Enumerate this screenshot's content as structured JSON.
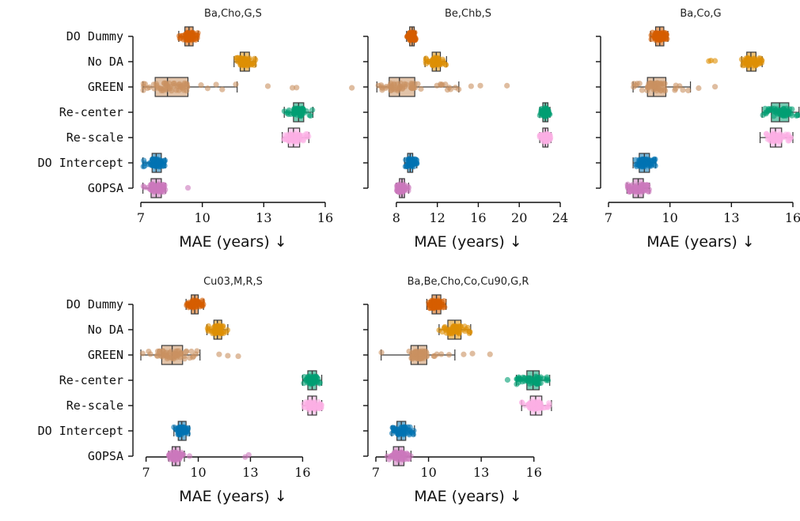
{
  "chart_data": [
    {
      "type": "box",
      "title": "Ba,Cho,G,S",
      "xlabel": "MAE (years) ↓",
      "xlim": [
        7,
        16
      ],
      "xticks": [
        7,
        10,
        13,
        16
      ],
      "ytick_labels_shown": true,
      "methods": [
        {
          "name": "DO Dummy",
          "color": "#d55e00",
          "q1": 9.15,
          "median": 9.35,
          "q3": 9.55,
          "whislo": 8.85,
          "whishi": 9.8,
          "outliers": []
        },
        {
          "name": "No DA",
          "color": "#de8f05",
          "q1": 11.85,
          "median": 12.05,
          "q3": 12.3,
          "whislo": 11.55,
          "whishi": 12.6,
          "outliers": []
        },
        {
          "name": "GREEN",
          "color": "#ca9161",
          "q1": 7.7,
          "median": 8.3,
          "q3": 9.3,
          "whislo": 7.1,
          "whishi": 11.7,
          "outliers": [
            13.2,
            14.4,
            14.6,
            17.3
          ]
        },
        {
          "name": "Re-center",
          "color": "#029e73",
          "q1": 14.45,
          "median": 14.7,
          "q3": 14.95,
          "whislo": 14.0,
          "whishi": 15.4,
          "outliers": []
        },
        {
          "name": "Re-scale",
          "color": "#fbafe4",
          "q1": 14.2,
          "median": 14.45,
          "q3": 14.75,
          "whislo": 13.9,
          "whishi": 15.2,
          "outliers": []
        },
        {
          "name": "DO Intercept",
          "color": "#0173b2",
          "q1": 7.55,
          "median": 7.75,
          "q3": 8.0,
          "whislo": 7.1,
          "whishi": 8.2,
          "outliers": []
        },
        {
          "name": "GOPSA",
          "color": "#cc78bc",
          "q1": 7.5,
          "median": 7.75,
          "q3": 8.0,
          "whislo": 7.1,
          "whishi": 8.2,
          "outliers": [
            9.3
          ]
        }
      ]
    },
    {
      "type": "box",
      "title": "Be,Chb,S",
      "xlabel": "MAE (years) ↓",
      "xlim": [
        6,
        24
      ],
      "xticks": [
        8,
        12,
        16,
        20,
        24
      ],
      "ytick_labels_shown": false,
      "methods": [
        {
          "name": "DO Dummy",
          "color": "#d55e00",
          "q1": 9.3,
          "median": 9.55,
          "q3": 9.75,
          "whislo": 9.0,
          "whishi": 9.9,
          "outliers": []
        },
        {
          "name": "No DA",
          "color": "#de8f05",
          "q1": 11.5,
          "median": 11.9,
          "q3": 12.3,
          "whislo": 10.8,
          "whishi": 12.9,
          "outliers": []
        },
        {
          "name": "GREEN",
          "color": "#ca9161",
          "q1": 7.3,
          "median": 8.3,
          "q3": 9.8,
          "whislo": 6.1,
          "whishi": 14.1,
          "outliers": [
            15.3,
            16.2,
            18.8
          ]
        },
        {
          "name": "Re-center",
          "color": "#029e73",
          "q1": 22.3,
          "median": 22.55,
          "q3": 22.8,
          "whislo": 22.0,
          "whishi": 23.0,
          "outliers": []
        },
        {
          "name": "Re-scale",
          "color": "#fbafe4",
          "q1": 22.3,
          "median": 22.55,
          "q3": 22.8,
          "whislo": 22.0,
          "whishi": 23.1,
          "outliers": []
        },
        {
          "name": "DO Intercept",
          "color": "#0173b2",
          "q1": 9.1,
          "median": 9.35,
          "q3": 9.6,
          "whislo": 8.8,
          "whishi": 10.0,
          "outliers": []
        },
        {
          "name": "GOPSA",
          "color": "#cc78bc",
          "q1": 8.3,
          "median": 8.55,
          "q3": 8.8,
          "whislo": 8.0,
          "whishi": 9.2,
          "outliers": []
        }
      ]
    },
    {
      "type": "box",
      "title": "Ba,Co,G",
      "xlabel": "MAE (years) ↓",
      "xlim": [
        7,
        16
      ],
      "xticks": [
        7,
        10,
        13,
        16
      ],
      "ytick_labels_shown": false,
      "methods": [
        {
          "name": "DO Dummy",
          "color": "#d55e00",
          "q1": 9.3,
          "median": 9.5,
          "q3": 9.7,
          "whislo": 9.05,
          "whishi": 9.9,
          "outliers": []
        },
        {
          "name": "No DA",
          "color": "#de8f05",
          "q1": 13.75,
          "median": 13.95,
          "q3": 14.2,
          "whislo": 13.5,
          "whishi": 14.5,
          "outliers": [
            11.9,
            12.0,
            12.2
          ]
        },
        {
          "name": "GREEN",
          "color": "#ca9161",
          "q1": 8.9,
          "median": 9.2,
          "q3": 9.8,
          "whislo": 8.2,
          "whishi": 11.0,
          "outliers": [
            11.4,
            12.2
          ]
        },
        {
          "name": "Re-center",
          "color": "#029e73",
          "q1": 14.95,
          "median": 15.35,
          "q3": 15.8,
          "whislo": 14.5,
          "whishi": 16.3,
          "outliers": []
        },
        {
          "name": "Re-scale",
          "color": "#fbafe4",
          "q1": 14.9,
          "median": 15.15,
          "q3": 15.45,
          "whislo": 14.4,
          "whishi": 16.0,
          "outliers": []
        },
        {
          "name": "DO Intercept",
          "color": "#0173b2",
          "q1": 8.5,
          "median": 8.75,
          "q3": 9.0,
          "whislo": 8.2,
          "whishi": 9.3,
          "outliers": []
        },
        {
          "name": "GOPSA",
          "color": "#cc78bc",
          "q1": 8.2,
          "median": 8.45,
          "q3": 8.7,
          "whislo": 7.9,
          "whishi": 9.0,
          "outliers": []
        }
      ]
    },
    {
      "type": "box",
      "title": "Cu03,M,R,S",
      "xlabel": "MAE (years) ↓",
      "xlim": [
        6.7,
        17.3
      ],
      "xticks": [
        7,
        10,
        13,
        16
      ],
      "ytick_labels_shown": true,
      "methods": [
        {
          "name": "DO Dummy",
          "color": "#d55e00",
          "q1": 9.6,
          "median": 9.8,
          "q3": 10.0,
          "whislo": 9.3,
          "whishi": 10.3,
          "outliers": []
        },
        {
          "name": "No DA",
          "color": "#de8f05",
          "q1": 10.9,
          "median": 11.1,
          "q3": 11.35,
          "whislo": 10.5,
          "whishi": 11.7,
          "outliers": []
        },
        {
          "name": "GREEN",
          "color": "#ca9161",
          "q1": 7.9,
          "median": 8.5,
          "q3": 9.1,
          "whislo": 6.7,
          "whishi": 10.1,
          "outliers": [
            11.2,
            11.7,
            12.3
          ]
        },
        {
          "name": "Re-center",
          "color": "#029e73",
          "q1": 16.3,
          "median": 16.55,
          "q3": 16.8,
          "whislo": 16.0,
          "whishi": 17.1,
          "outliers": []
        },
        {
          "name": "Re-scale",
          "color": "#fbafe4",
          "q1": 16.3,
          "median": 16.55,
          "q3": 16.8,
          "whislo": 16.0,
          "whishi": 17.1,
          "outliers": []
        },
        {
          "name": "DO Intercept",
          "color": "#0173b2",
          "q1": 8.85,
          "median": 9.05,
          "q3": 9.3,
          "whislo": 8.6,
          "whishi": 9.5,
          "outliers": []
        },
        {
          "name": "GOPSA",
          "color": "#cc78bc",
          "q1": 8.5,
          "median": 8.7,
          "q3": 8.95,
          "whislo": 8.3,
          "whishi": 9.2,
          "outliers": [
            9.5,
            12.7,
            12.9
          ]
        }
      ]
    },
    {
      "type": "box",
      "title": "Ba,Be,Cho,Co,Cu90,G,R",
      "xlabel": "MAE (years) ↓",
      "xlim": [
        7,
        17.5
      ],
      "xticks": [
        7,
        10,
        13,
        16
      ],
      "ytick_labels_shown": false,
      "methods": [
        {
          "name": "DO Dummy",
          "color": "#d55e00",
          "q1": 10.2,
          "median": 10.45,
          "q3": 10.7,
          "whislo": 9.9,
          "whishi": 11.0,
          "outliers": []
        },
        {
          "name": "No DA",
          "color": "#de8f05",
          "q1": 11.1,
          "median": 11.5,
          "q3": 11.85,
          "whislo": 10.6,
          "whishi": 12.4,
          "outliers": []
        },
        {
          "name": "GREEN",
          "color": "#ca9161",
          "q1": 9.0,
          "median": 9.4,
          "q3": 9.9,
          "whislo": 7.3,
          "whishi": 11.5,
          "outliers": [
            12.0,
            12.5,
            13.5
          ]
        },
        {
          "name": "Re-center",
          "color": "#029e73",
          "q1": 15.6,
          "median": 15.95,
          "q3": 16.3,
          "whislo": 15.0,
          "whishi": 16.9,
          "outliers": [
            14.5
          ]
        },
        {
          "name": "Re-scale",
          "color": "#fbafe4",
          "q1": 15.8,
          "median": 16.1,
          "q3": 16.45,
          "whislo": 15.3,
          "whishi": 17.0,
          "outliers": []
        },
        {
          "name": "DO Intercept",
          "color": "#0173b2",
          "q1": 8.2,
          "median": 8.45,
          "q3": 8.7,
          "whislo": 7.9,
          "whishi": 9.2,
          "outliers": []
        },
        {
          "name": "GOPSA",
          "color": "#cc78bc",
          "q1": 8.0,
          "median": 8.3,
          "q3": 8.6,
          "whislo": 7.6,
          "whishi": 9.0,
          "outliers": []
        }
      ]
    }
  ]
}
